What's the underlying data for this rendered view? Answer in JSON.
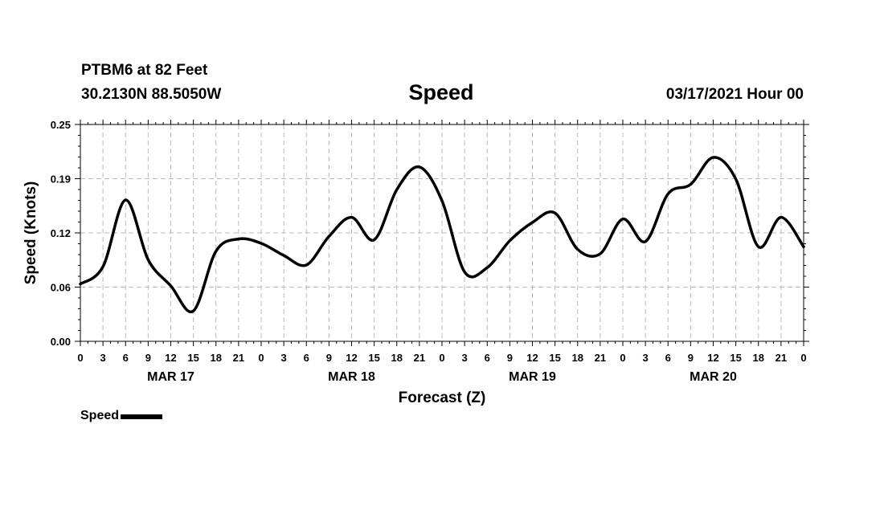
{
  "header": {
    "station": "PTBM6 at 82 Feet",
    "coords": "30.2130N 88.5050W",
    "title": "Speed",
    "datetime": "03/17/2021 Hour 00"
  },
  "legend": {
    "label": "Speed"
  },
  "chart_data": {
    "type": "line",
    "title": "Speed",
    "xlabel": "Forecast (Z)",
    "ylabel": "Speed (Knots)",
    "x_unit": "forecast hour from 03/17/2021 00Z",
    "xlim": [
      0,
      96
    ],
    "ylim": [
      0,
      0.25
    ],
    "yticks": [
      "0.00",
      "0.06",
      "0.12",
      "0.19",
      "0.25"
    ],
    "xtick_labels": [
      "0",
      "3",
      "6",
      "9",
      "12",
      "15",
      "18",
      "21",
      "0",
      "3",
      "6",
      "9",
      "12",
      "15",
      "18",
      "21",
      "0",
      "3",
      "6",
      "9",
      "12",
      "15",
      "18",
      "21",
      "0",
      "3",
      "6",
      "9",
      "12",
      "15",
      "18",
      "21",
      "0"
    ],
    "day_labels": [
      {
        "label": "MAR 17",
        "hour": 12
      },
      {
        "label": "MAR 18",
        "hour": 36
      },
      {
        "label": "MAR 19",
        "hour": 60
      },
      {
        "label": "MAR 20",
        "hour": 84
      }
    ],
    "grid": true,
    "legend_position": "bottom-left",
    "series": [
      {
        "name": "Speed",
        "color": "#000000",
        "x": [
          0,
          3,
          6,
          9,
          12,
          15,
          18,
          21,
          24,
          27,
          30,
          33,
          36,
          39,
          42,
          45,
          48,
          51,
          54,
          57,
          60,
          63,
          66,
          69,
          72,
          75,
          78,
          81,
          84,
          87,
          90,
          93,
          96
        ],
        "y": [
          0.066,
          0.086,
          0.163,
          0.094,
          0.064,
          0.035,
          0.104,
          0.118,
          0.113,
          0.099,
          0.088,
          0.121,
          0.143,
          0.117,
          0.175,
          0.201,
          0.162,
          0.08,
          0.085,
          0.116,
          0.137,
          0.148,
          0.106,
          0.101,
          0.141,
          0.115,
          0.17,
          0.181,
          0.212,
          0.187,
          0.109,
          0.143,
          0.109
        ]
      }
    ]
  }
}
